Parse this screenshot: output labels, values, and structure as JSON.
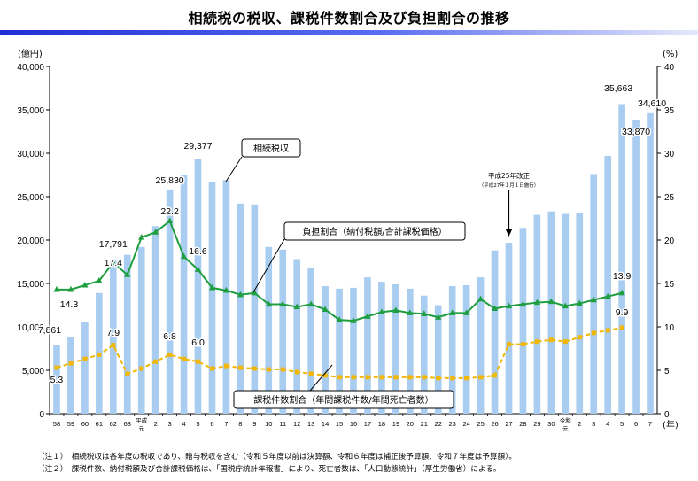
{
  "title": "相続税の税収、課税件数割合及び負担割合の推移",
  "chart_data": {
    "type": "bar",
    "left_axis_unit": "(億円)",
    "right_axis_unit": "(%)",
    "x_unit": "(年)",
    "left_ticks": [
      "0",
      "5,000",
      "10,000",
      "15,000",
      "20,000",
      "25,000",
      "30,000",
      "35,000",
      "40,000"
    ],
    "right_ticks": [
      "0",
      "5",
      "10",
      "15",
      "20",
      "25",
      "30",
      "35",
      "40"
    ],
    "ylim_left": [
      0,
      40000
    ],
    "ylim_right": [
      0,
      40
    ],
    "categories": [
      "58",
      "59",
      "60",
      "61",
      "62",
      "63",
      "平成元",
      "2",
      "3",
      "4",
      "5",
      "6",
      "7",
      "8",
      "9",
      "10",
      "11",
      "12",
      "13",
      "14",
      "15",
      "16",
      "17",
      "18",
      "19",
      "20",
      "21",
      "22",
      "23",
      "24",
      "25",
      "26",
      "27",
      "28",
      "29",
      "30",
      "令和元",
      "2",
      "3",
      "4",
      "5",
      "6",
      "7"
    ],
    "series": [
      {
        "name": "相続税収",
        "kind": "bar",
        "axis": "left",
        "values": [
          7861,
          8800,
          10600,
          13900,
          17791,
          18300,
          19200,
          21600,
          25830,
          27500,
          29377,
          26700,
          26900,
          24200,
          24100,
          19200,
          18900,
          17800,
          16800,
          14700,
          14400,
          14500,
          15700,
          15200,
          14900,
          14400,
          13600,
          12500,
          14700,
          14800,
          15700,
          18800,
          19700,
          21400,
          22900,
          23300,
          23000,
          23100,
          27600,
          29700,
          35663,
          33870,
          34610
        ]
      },
      {
        "name": "負担割合（納付税額/合計課税価格）",
        "kind": "line",
        "axis": "right",
        "values": [
          14.3,
          14.3,
          14.8,
          15.3,
          17.4,
          16.0,
          20.3,
          20.9,
          22.2,
          18.1,
          16.6,
          14.5,
          14.2,
          13.7,
          13.9,
          12.6,
          12.6,
          12.3,
          12.6,
          12.0,
          10.8,
          10.7,
          11.2,
          11.7,
          11.9,
          11.6,
          11.5,
          11.1,
          11.6,
          11.6,
          13.2,
          12.1,
          12.4,
          12.6,
          12.8,
          12.9,
          12.4,
          12.7,
          13.1,
          13.5,
          13.9,
          null,
          null
        ]
      },
      {
        "name": "課税件数割合（年間課税件数/年間死亡者数）",
        "kind": "line",
        "axis": "right",
        "values": [
          5.3,
          5.8,
          6.3,
          6.8,
          7.9,
          4.6,
          5.2,
          6.0,
          6.8,
          6.3,
          6.0,
          5.2,
          5.5,
          5.3,
          5.2,
          5.1,
          5.1,
          4.8,
          4.6,
          4.4,
          4.2,
          4.2,
          4.2,
          4.2,
          4.2,
          4.2,
          4.2,
          4.1,
          4.1,
          4.1,
          4.2,
          4.4,
          8.0,
          8.0,
          8.3,
          8.5,
          8.3,
          8.8,
          9.3,
          9.6,
          9.9,
          null,
          null
        ]
      }
    ],
    "data_labels": {
      "bar": [
        {
          "cat": "58",
          "text": "7,861"
        },
        {
          "cat": "62",
          "text": "17,791"
        },
        {
          "cat": "3",
          "text": "25,830"
        },
        {
          "cat": "5",
          "text": "29,377"
        },
        {
          "cat": "5b",
          "text": "35,663"
        },
        {
          "cat": "6b",
          "text": "33,870"
        },
        {
          "cat": "7b",
          "text": "34,610"
        }
      ],
      "burden": [
        {
          "cat": "58",
          "text": "14.3"
        },
        {
          "cat": "62",
          "text": "17.4"
        },
        {
          "cat": "3",
          "text": "22.2"
        },
        {
          "cat": "5",
          "text": "16.6"
        },
        {
          "cat": "5b",
          "text": "13.9"
        }
      ],
      "count": [
        {
          "cat": "58",
          "text": "5.3"
        },
        {
          "cat": "62",
          "text": "7.9"
        },
        {
          "cat": "3",
          "text": "6.8"
        },
        {
          "cat": "5",
          "text": "6.0"
        },
        {
          "cat": "5b",
          "text": "9.9"
        }
      ]
    },
    "callouts": {
      "tax_revenue": "相続税収",
      "burden": "負担割合（納付税額/合計課税価格）",
      "count": "課税件数割合（年間課税件数/年間死亡者数）",
      "reform_title": "平成25年改正",
      "reform_sub": "（平成27年１月１日施行）"
    },
    "colors": {
      "bar": "#a9cdf0",
      "burden": "#1e9e3e",
      "count": "#f2b705",
      "axis": "#000000"
    }
  },
  "notes": [
    "（注１）　相続税収は各年度の税収であり、贈与税収を含む（令和５年度以前は決算額、令和６年度は補正後予算額、令和７年度は予算額）。",
    "（注２）　課税件数、納付税額及び合計課税価格は、「国税庁統計年報書」により、死亡者数は、「人口動態統計」（厚生労働省）による。"
  ]
}
